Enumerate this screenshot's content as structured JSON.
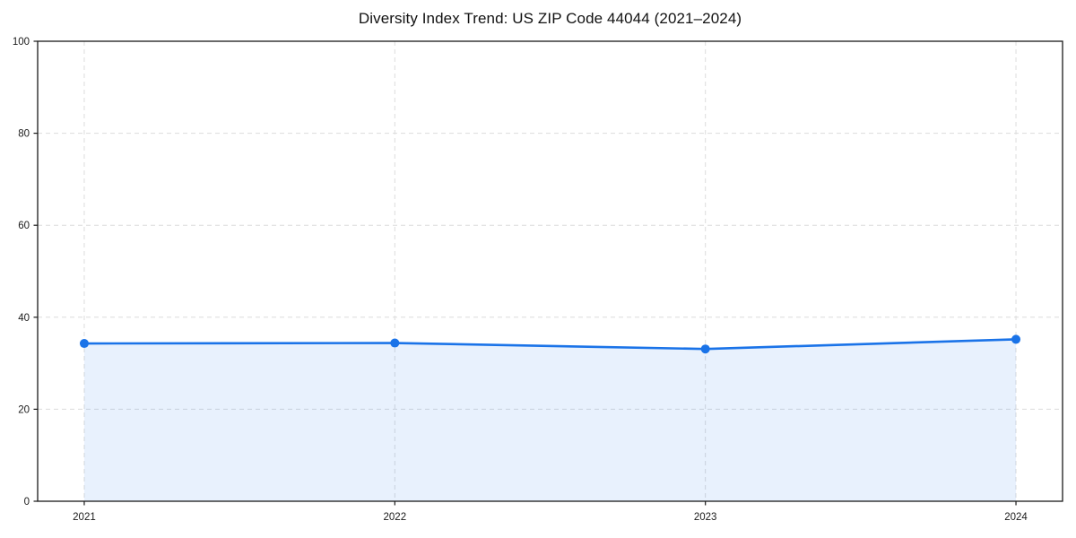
{
  "page": {
    "background_color": "#ffffff"
  },
  "chart_data": {
    "type": "line",
    "subtype": "area-filled-line-with-markers",
    "title": "Diversity Index Trend: US ZIP Code 44044 (2021–2024)",
    "x": [
      2021,
      2022,
      2023,
      2024
    ],
    "xticks": [
      "2021",
      "2022",
      "2023",
      "2024"
    ],
    "series": [
      {
        "name": "Diversity Index",
        "values": [
          34.3,
          34.4,
          33.1,
          35.2
        ]
      }
    ],
    "xlabel": "",
    "ylabel": "",
    "ylim": [
      0,
      100
    ],
    "yticks": [
      0,
      20,
      40,
      60,
      80,
      100
    ],
    "grid": "dashed-both-axes",
    "legend": "none",
    "colors": {
      "line": "#1a73e8",
      "marker": "#1a73e8",
      "area_fill": "#1a73e8",
      "area_opacity": 0.1,
      "grid": "#dcdcdc",
      "axis_frame": "#1a1a1a",
      "tick_text": "#1a1a1a",
      "title_text": "#111111",
      "background": "#ffffff"
    }
  }
}
